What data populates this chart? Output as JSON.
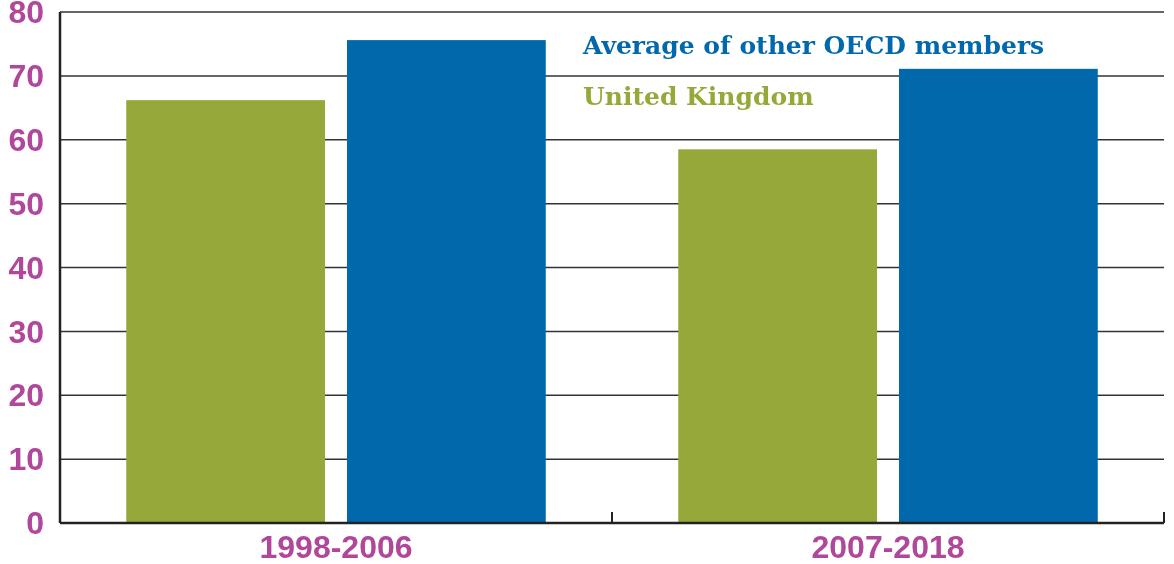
{
  "chart_data": {
    "type": "bar",
    "categories": [
      "1998-2006",
      "2007-2018"
    ],
    "series": [
      {
        "name": "United Kingdom",
        "color": "#96a83a",
        "values": [
          66.2,
          58.5
        ]
      },
      {
        "name": "Average of other OECD members",
        "color": "#0068ab",
        "values": [
          75.6,
          71.1
        ]
      }
    ],
    "ylim": [
      0,
      80
    ],
    "yticks": [
      0,
      10,
      20,
      30,
      40,
      50,
      60,
      70,
      80
    ],
    "grid": "y",
    "legend": "top right"
  }
}
